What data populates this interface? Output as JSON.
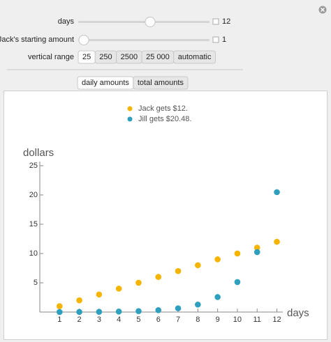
{
  "controls": {
    "days": {
      "label": "days",
      "value": "12"
    },
    "start": {
      "label": "Jack's starting amount",
      "value": "1"
    },
    "range": {
      "label": "vertical range",
      "options": [
        "25",
        "250",
        "2500",
        "25 000",
        "automatic"
      ]
    },
    "tabs": [
      "daily amounts",
      "total amounts"
    ]
  },
  "chart_data": {
    "type": "scatter",
    "x_label": "days",
    "y_label": "dollars",
    "x": [
      1,
      2,
      3,
      4,
      5,
      6,
      7,
      8,
      9,
      10,
      11,
      12
    ],
    "series": [
      {
        "name": "Jack gets $12.",
        "color": "#f5b400",
        "values": [
          1,
          2,
          3,
          4,
          5,
          6,
          7,
          8,
          9,
          10,
          11,
          12
        ]
      },
      {
        "name": "Jill gets $20.48.",
        "color": "#2e9fbd",
        "values": [
          0.01,
          0.02,
          0.04,
          0.08,
          0.16,
          0.32,
          0.64,
          1.28,
          2.56,
          5.12,
          10.24,
          20.48
        ]
      }
    ],
    "xlim": [
      0,
      12.3
    ],
    "ylim": [
      0,
      25.7
    ],
    "xticks": [
      1,
      2,
      3,
      4,
      5,
      6,
      7,
      8,
      9,
      10,
      11,
      12
    ],
    "yticks": [
      5,
      10,
      15,
      20,
      25
    ]
  }
}
